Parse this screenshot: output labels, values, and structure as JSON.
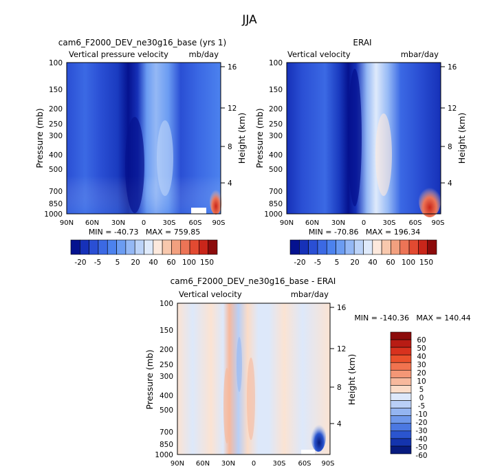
{
  "figure_title": "JJA",
  "chart_data": [
    {
      "type": "heatmap",
      "title": "cam6_F2000_DEV_ne30g16_base (yrs 1)",
      "subtitle_left": "Vertical pressure velocity",
      "subtitle_right": "mb/day",
      "ylabel": "Pressure (mb)",
      "ylabel_right": "Height (km)",
      "x_ticks": [
        "90N",
        "60N",
        "30N",
        "0",
        "30S",
        "60S",
        "90S"
      ],
      "y_ticks": [
        "100",
        "150",
        "200",
        "250",
        "300",
        "400",
        "500",
        "700",
        "850",
        "1000"
      ],
      "y_ticks_right": [
        "16",
        "12",
        "8",
        "4"
      ],
      "stats": "MIN = -40.73   MAX = 759.85",
      "colorbar_labels": [
        "-20",
        "-5",
        "5",
        "20",
        "40",
        "60",
        "100",
        "150"
      ],
      "colorbar_colors": [
        "#05128f",
        "#1631b8",
        "#2a4fd4",
        "#3b69e4",
        "#4c82ee",
        "#6b9cf2",
        "#94b8f5",
        "#bcd3f8",
        "#dfeafb",
        "#fde9dd",
        "#f8c8ad",
        "#f2a07f",
        "#ec7456",
        "#e24a31",
        "#c9261a",
        "#8c0b0b"
      ]
    },
    {
      "type": "heatmap",
      "title": "ERAI",
      "subtitle_left": "Vertical velocity",
      "subtitle_right": "mbar/day",
      "ylabel": "Pressure (mb)",
      "ylabel_right": "Height (km)",
      "x_ticks": [
        "90N",
        "60N",
        "30N",
        "0",
        "30S",
        "60S",
        "90S"
      ],
      "y_ticks": [
        "100",
        "150",
        "200",
        "250",
        "300",
        "400",
        "500",
        "700",
        "850",
        "1000"
      ],
      "y_ticks_right": [
        "16",
        "12",
        "8",
        "4"
      ],
      "stats": "MIN = -70.86   MAX = 196.34",
      "colorbar_labels": [
        "-20",
        "-5",
        "5",
        "20",
        "40",
        "60",
        "100",
        "150"
      ]
    },
    {
      "type": "heatmap",
      "title": "cam6_F2000_DEV_ne30g16_base - ERAI",
      "subtitle_left": "Vertical velocity",
      "subtitle_right": "mbar/day",
      "ylabel": "Pressure (mb)",
      "ylabel_right": "Height (km)",
      "x_ticks": [
        "90N",
        "60N",
        "30N",
        "0",
        "30S",
        "60S",
        "90S"
      ],
      "y_ticks": [
        "100",
        "150",
        "200",
        "250",
        "300",
        "400",
        "500",
        "700",
        "850",
        "1000"
      ],
      "y_ticks_right": [
        "16",
        "12",
        "8",
        "4"
      ],
      "stats": "MIN = -140.36   MAX = 140.44",
      "colorbar_labels": [
        "60",
        "50",
        "40",
        "30",
        "20",
        "10",
        "5",
        "0",
        "-5",
        "-10",
        "-20",
        "-30",
        "-40",
        "-50",
        "-60"
      ],
      "colorbar_colors": [
        "#8c0b0b",
        "#b81c14",
        "#d8321e",
        "#ea512c",
        "#f1734f",
        "#f49776",
        "#f7b99d",
        "#fbdcc8",
        "#dde8fa",
        "#b9cff6",
        "#94b5f1",
        "#6f98eb",
        "#4b78e2",
        "#2b55cf",
        "#1434ad",
        "#071b7f"
      ]
    }
  ]
}
